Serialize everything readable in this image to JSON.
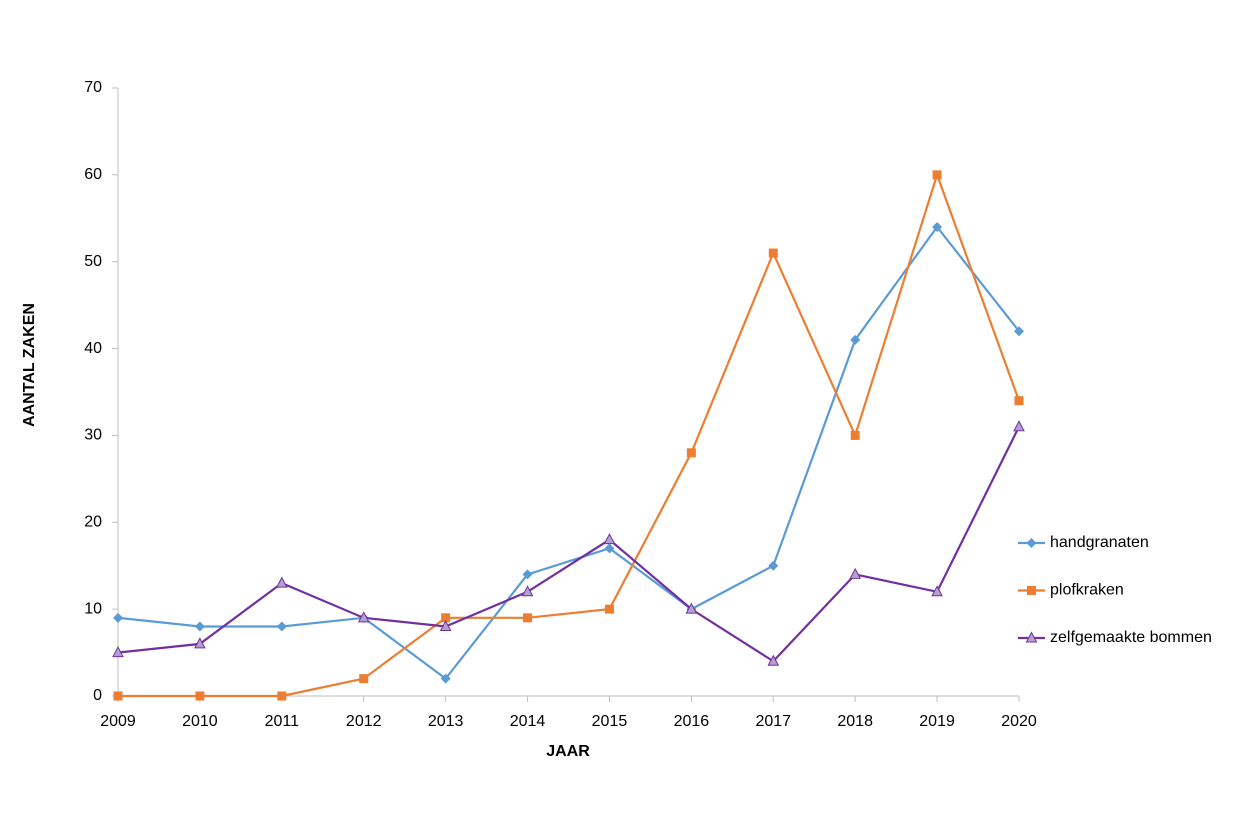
{
  "chart_data": {
    "type": "line",
    "x_label": "JAAR",
    "y_label": "AANTAL ZAKEN",
    "x": [
      2009,
      2010,
      2011,
      2012,
      2013,
      2014,
      2015,
      2016,
      2017,
      2018,
      2019,
      2020
    ],
    "xlim": [
      2009,
      2020
    ],
    "xticks": [
      2009,
      2010,
      2011,
      2012,
      2013,
      2014,
      2015,
      2016,
      2017,
      2018,
      2019,
      2020
    ],
    "ylim": [
      0,
      70
    ],
    "yticks": [
      0,
      10,
      20,
      30,
      40,
      50,
      60,
      70
    ],
    "grid": false,
    "legend": "right",
    "series": [
      {
        "name": "handgranaten",
        "color": "#5b9bd5",
        "marker": "diamond",
        "values": [
          9,
          8,
          8,
          9,
          2,
          14,
          17,
          10,
          15,
          41,
          54,
          42
        ]
      },
      {
        "name": "plofkraken",
        "color": "#ed7d31",
        "marker": "square",
        "values": [
          0,
          0,
          0,
          2,
          9,
          9,
          10,
          28,
          51,
          30,
          60,
          34
        ]
      },
      {
        "name": "zelfgemaakte bommen",
        "color": "#7030a0",
        "marker": "triangle",
        "values": [
          5,
          6,
          13,
          9,
          8,
          12,
          18,
          10,
          4,
          14,
          12,
          31
        ]
      }
    ]
  }
}
